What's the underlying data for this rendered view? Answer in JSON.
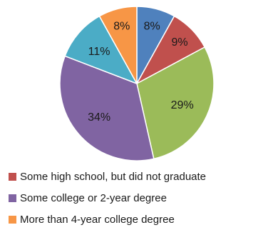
{
  "chart_data": {
    "type": "pie",
    "slices": [
      {
        "label": "",
        "value": 8,
        "value_label": "8%",
        "color": "#4f81bd"
      },
      {
        "label": "Some high school, but did not graduate",
        "value": 9,
        "value_label": "9%",
        "color": "#c0504d"
      },
      {
        "label": "",
        "value": 29,
        "value_label": "29%",
        "color": "#9bbb59"
      },
      {
        "label": "Some college or 2-year degree",
        "value": 34,
        "value_label": "34%",
        "color": "#8064a2"
      },
      {
        "label": "",
        "value": 11,
        "value_label": "11%",
        "color": "#4bacc6"
      },
      {
        "label": "More than 4-year college degree",
        "value": 8,
        "value_label": "8%",
        "color": "#f79646"
      }
    ],
    "legend": {
      "placement": "bottom",
      "items": [
        {
          "label": "Some high school, but did not graduate",
          "color": "#c0504d"
        },
        {
          "label": "Some college or 2-year degree",
          "color": "#8064a2"
        },
        {
          "label": "More than 4-year college degree",
          "color": "#f79646"
        }
      ]
    }
  }
}
